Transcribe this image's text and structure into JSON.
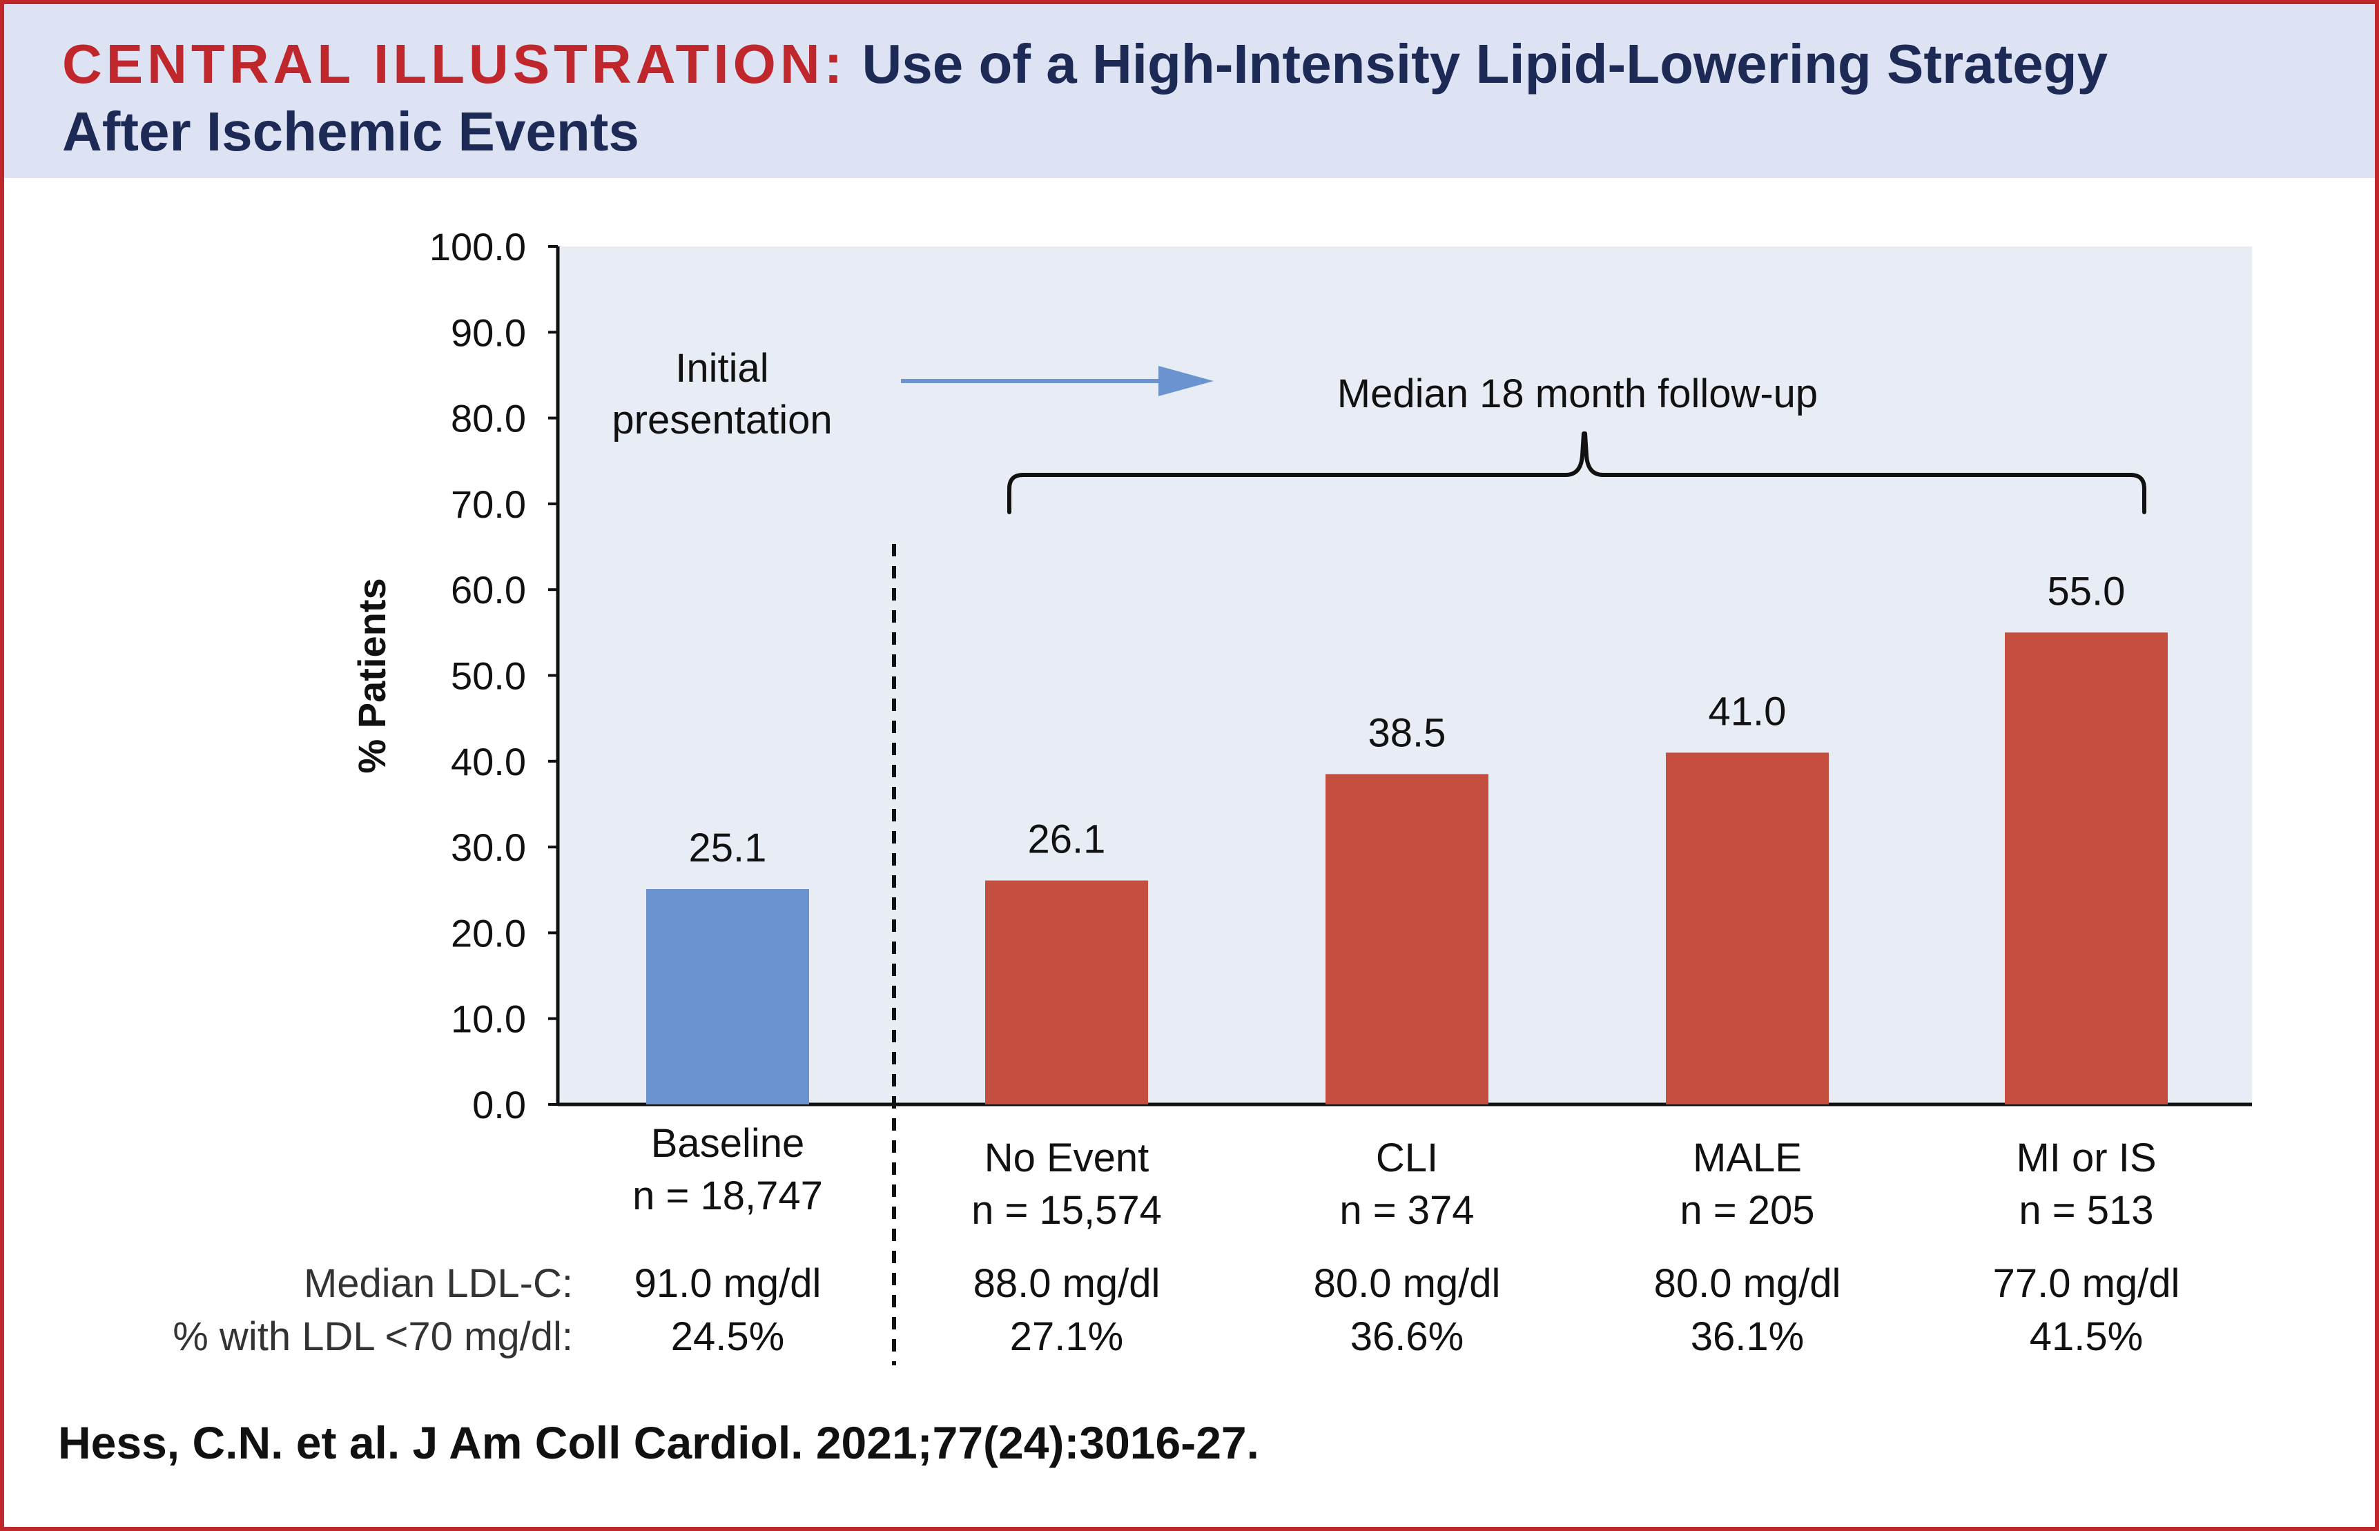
{
  "header": {
    "prefix": "CENTRAL ILLUSTRATION:",
    "title_line1": "Use of a High-Intensity Lipid-Lowering Strategy",
    "title_line2": "After Ischemic Events"
  },
  "annotations": {
    "initial_line1": "Initial",
    "initial_line2": "presentation",
    "followup": "Median 18 month follow-up"
  },
  "table": {
    "row1_label": "Median LDL-C:",
    "row2_label": "% with LDL <70 mg/dl:"
  },
  "chart_data": {
    "type": "bar",
    "ylabel": "% Patients",
    "ylim": [
      0,
      100
    ],
    "yticks": [
      "0.0",
      "10.0",
      "20.0",
      "30.0",
      "40.0",
      "50.0",
      "60.0",
      "70.0",
      "80.0",
      "90.0",
      "100.0"
    ],
    "grid": false,
    "categories": [
      {
        "name": "Baseline",
        "n": "n = 18,747",
        "value": 25.1,
        "label": "25.1",
        "ldl": "91.0 mg/dl",
        "pct": "24.5%",
        "color": "#6b93cf"
      },
      {
        "name": "No Event",
        "n": "n = 15,574",
        "value": 26.1,
        "label": "26.1",
        "ldl": "88.0 mg/dl",
        "pct": "27.1%",
        "color": "#c44f3f"
      },
      {
        "name": "CLI",
        "n": "n = 374",
        "value": 38.5,
        "label": "38.5",
        "ldl": "80.0 mg/dl",
        "pct": "36.6%",
        "color": "#c44f3f"
      },
      {
        "name": "MALE",
        "n": "n = 205",
        "value": 41.0,
        "label": "41.0",
        "ldl": "80.0 mg/dl",
        "pct": "36.1%",
        "color": "#c44f3f"
      },
      {
        "name": "MI or IS",
        "n": "n = 513",
        "value": 55.0,
        "label": "55.0",
        "ldl": "77.0 mg/dl",
        "pct": "41.5%",
        "color": "#c44f3f"
      }
    ]
  },
  "citation": "Hess, C.N. et al. J Am Coll Cardiol. 2021;77(24):3016-27.",
  "colors": {
    "accent": "#c0272d",
    "header_bg": "#dde3f2",
    "plot_bg": "#e8ecf5",
    "baseline_bar": "#6b93cf",
    "event_bar": "#c44f3f",
    "arrow": "#6b93cf"
  }
}
